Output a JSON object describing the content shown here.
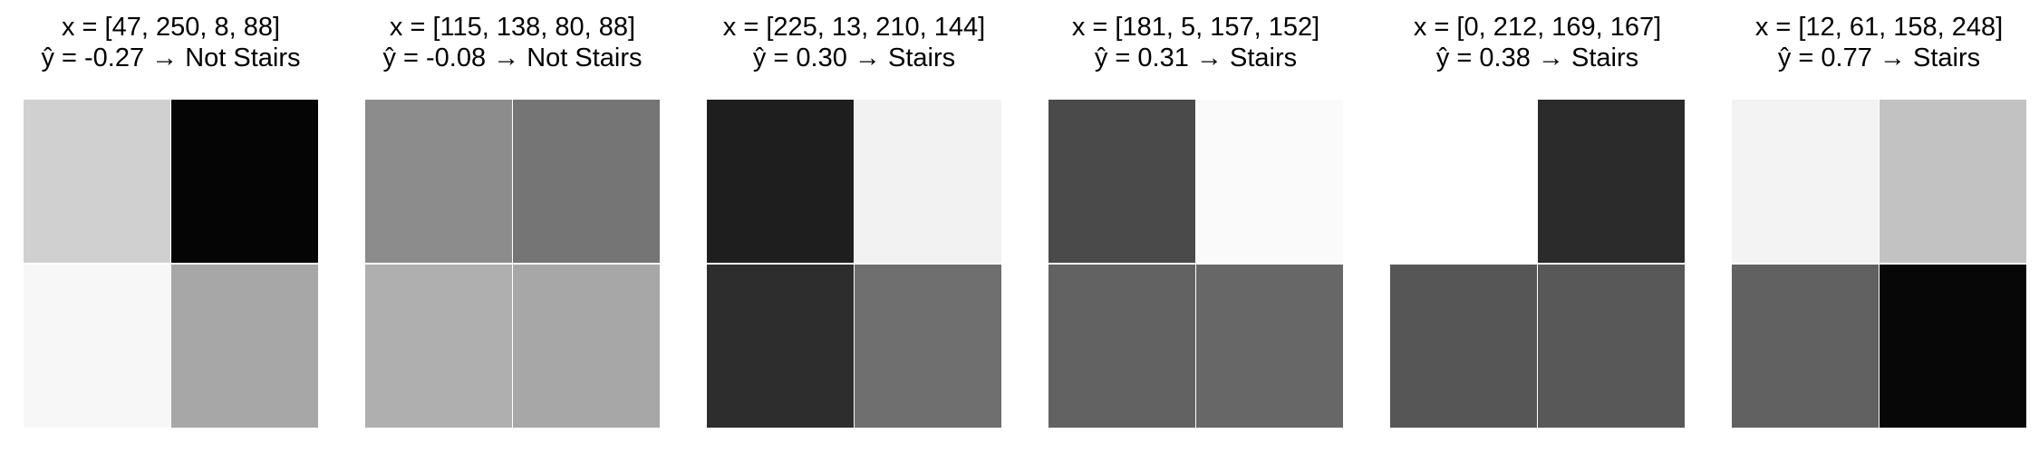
{
  "panels": [
    {
      "x_label": "x = [47, 250, 8, 88]",
      "y_label": "ŷ = -0.27 → Not Stairs",
      "pixels": [
        47,
        250,
        8,
        88
      ]
    },
    {
      "x_label": "x = [115, 138, 80, 88]",
      "y_label": "ŷ = -0.08 → Not Stairs",
      "pixels": [
        115,
        138,
        80,
        88
      ]
    },
    {
      "x_label": "x = [225, 13, 210, 144]",
      "y_label": "ŷ =  0.30 → Stairs",
      "pixels": [
        225,
        13,
        210,
        144
      ]
    },
    {
      "x_label": "x = [181, 5, 157, 152]",
      "y_label": "ŷ =  0.31 → Stairs",
      "pixels": [
        181,
        5,
        157,
        152
      ]
    },
    {
      "x_label": "x = [0, 212, 169, 167]",
      "y_label": "ŷ =  0.38 → Stairs",
      "pixels": [
        0,
        212,
        169,
        167
      ]
    },
    {
      "x_label": "x = [12, 61, 158, 248]",
      "y_label": "ŷ =  0.77 → Stairs",
      "pixels": [
        12,
        61,
        158,
        248
      ]
    }
  ]
}
